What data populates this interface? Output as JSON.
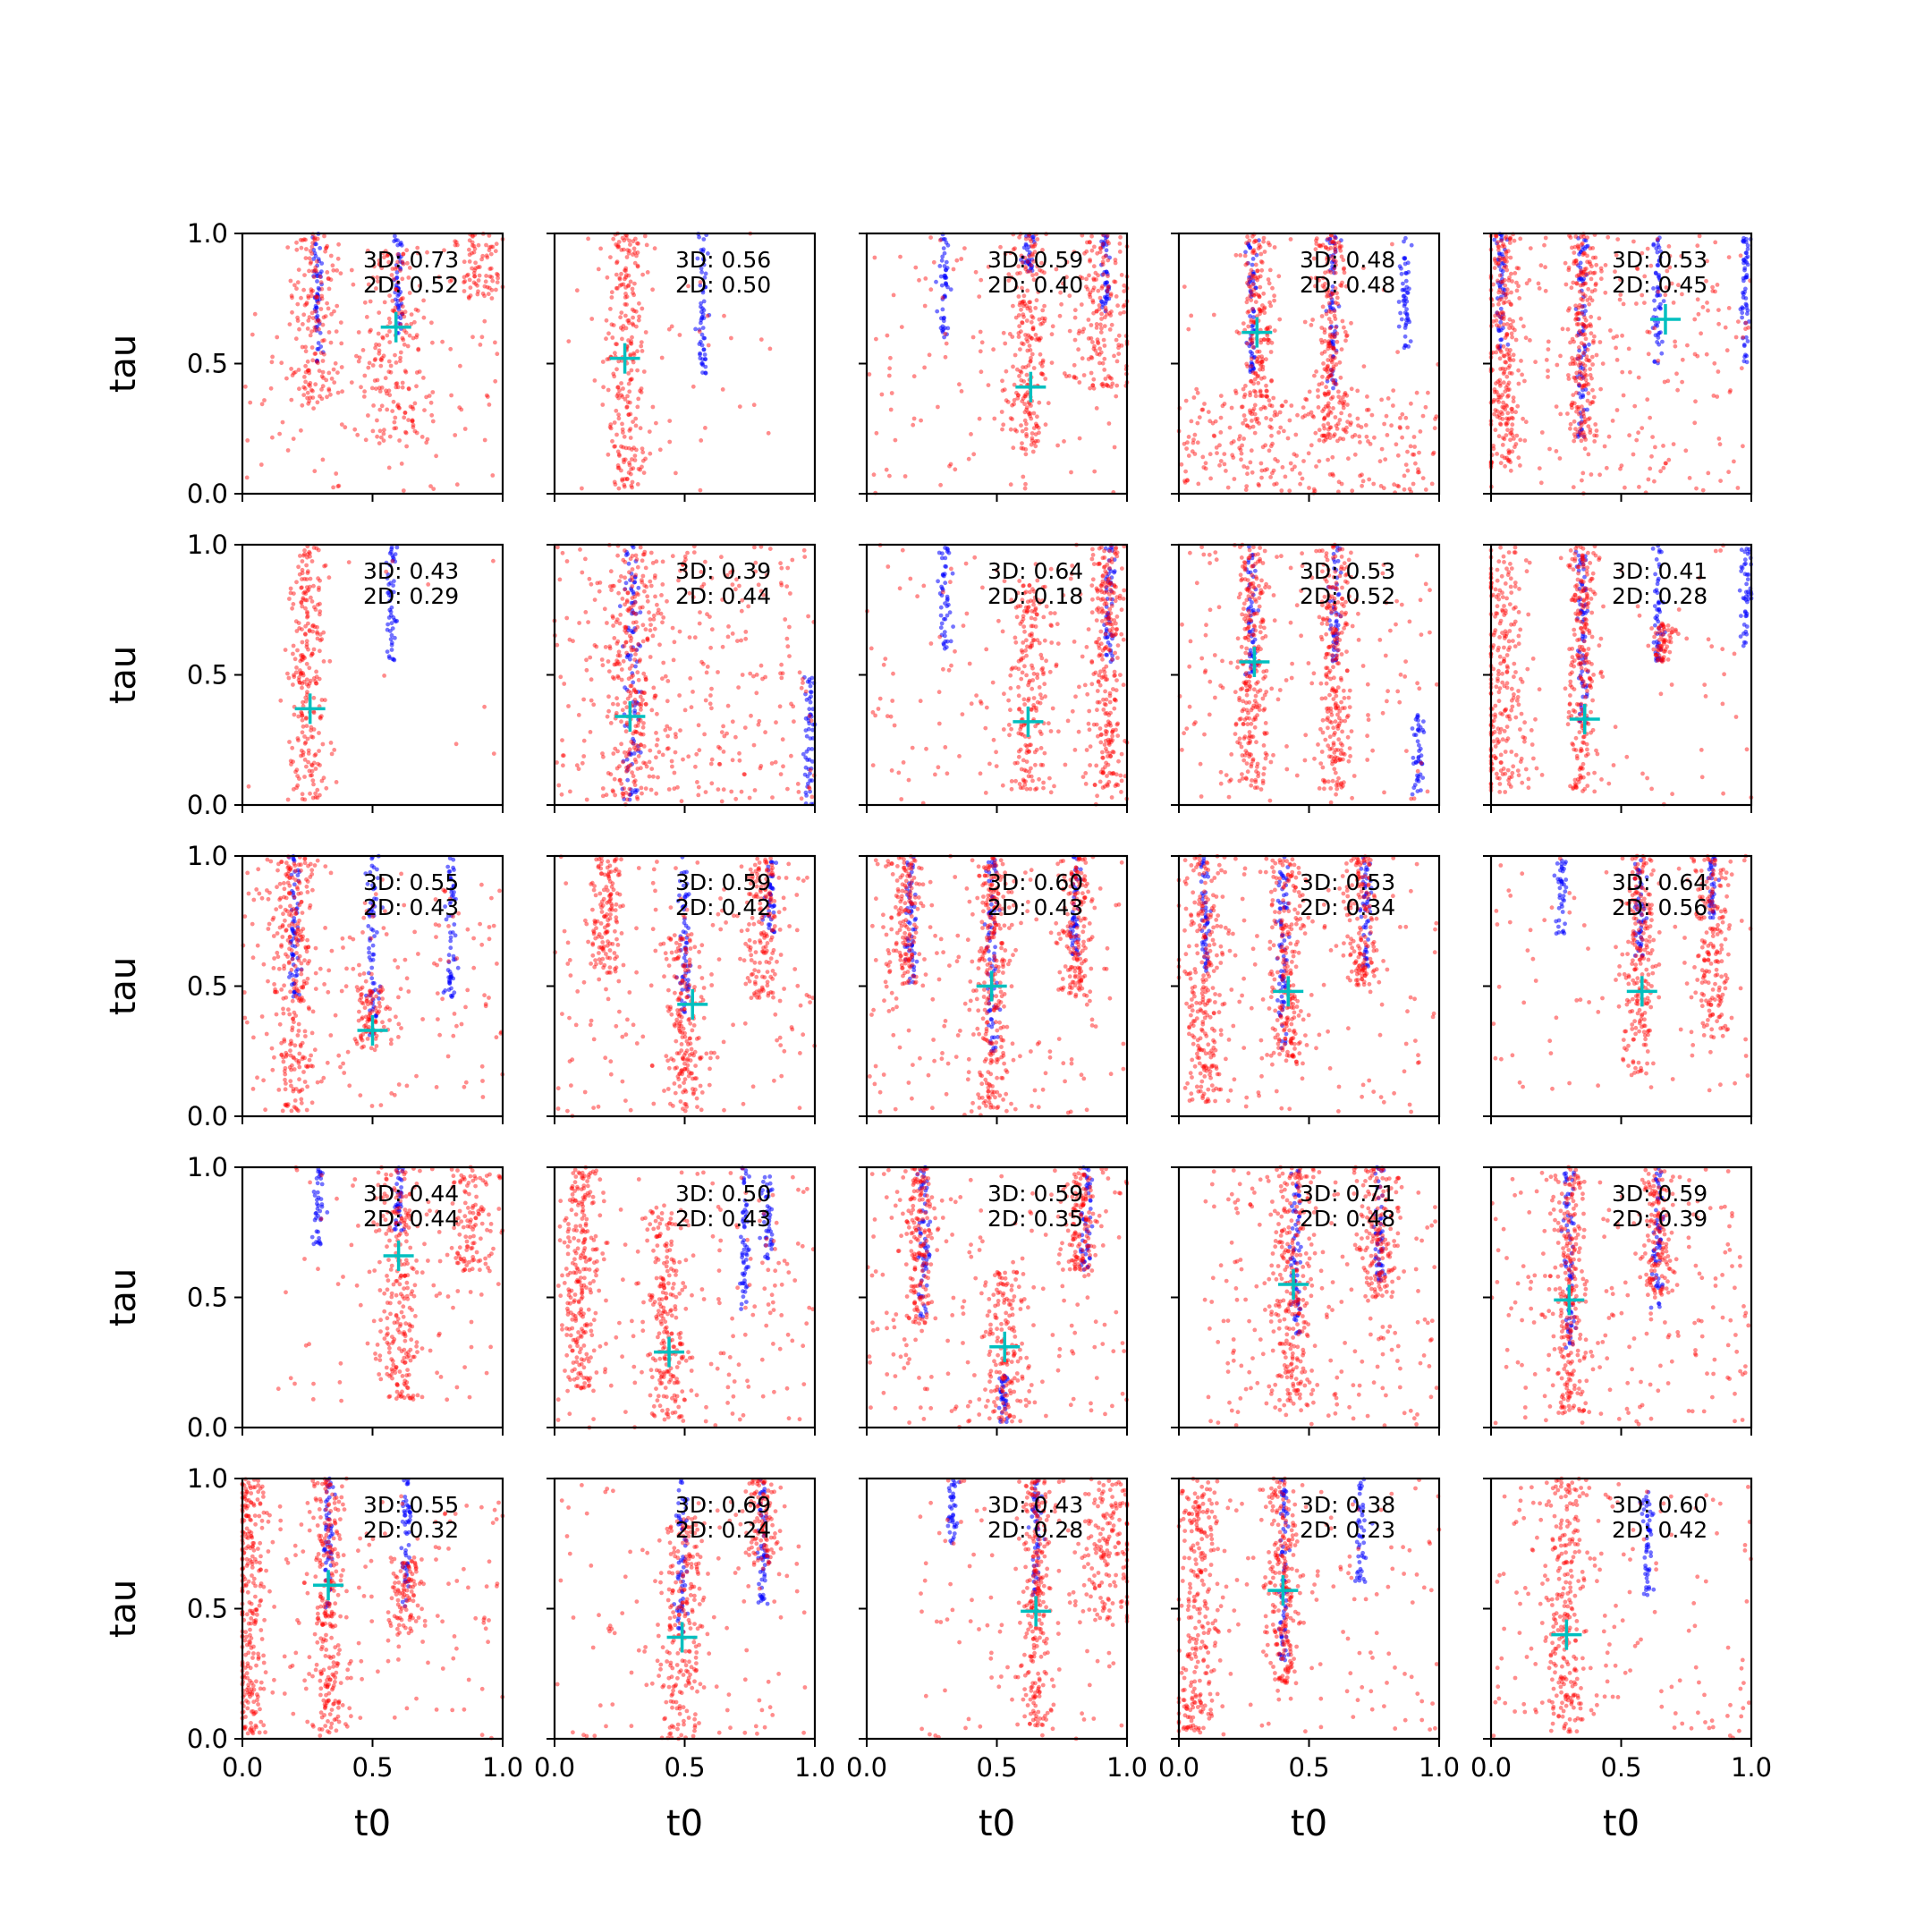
{
  "figure": {
    "xlabel": "t0",
    "ylabel": "tau",
    "xticks": [
      "0.0",
      "0.5",
      "1.0"
    ],
    "yticks": [
      "0.0",
      "0.5",
      "1.0"
    ],
    "colors": {
      "red_points": "#ff0000",
      "blue_points": "#0000ff",
      "marker": "#00bfbf"
    }
  },
  "chart_data": {
    "type": "scatter",
    "grid": {
      "rows": 5,
      "cols": 5
    },
    "xlim": [
      0,
      1
    ],
    "ylim": [
      0,
      1
    ],
    "grid_lines": false,
    "panels": [
      {
        "label_3d": "3D: 0.73",
        "label_2d": "2D: 0.52",
        "marker": [
          0.59,
          0.64
        ],
        "red_cols": [
          [
            0.59,
            0.07,
            0.2,
            0.95
          ],
          [
            0.28,
            0.05,
            0.35,
            1.0
          ],
          [
            0.9,
            0.05,
            0.75,
            1.0
          ]
        ],
        "blue_cols": [
          [
            0.29,
            0.02,
            0.5,
            1.0
          ],
          [
            0.6,
            0.02,
            0.6,
            1.0
          ]
        ],
        "scatter": [
          [
            0.5,
            0.5,
            0.0,
            0.7,
            90
          ]
        ]
      },
      {
        "label_3d": "3D: 0.56",
        "label_2d": "2D: 0.50",
        "marker": [
          0.27,
          0.52
        ],
        "red_cols": [
          [
            0.27,
            0.04,
            0.02,
            1.0
          ]
        ],
        "blue_cols": [
          [
            0.57,
            0.02,
            0.45,
            1.0
          ]
        ],
        "scatter": [
          [
            0.45,
            0.4,
            0.0,
            1.0,
            40
          ]
        ]
      },
      {
        "label_3d": "3D: 0.59",
        "label_2d": "2D: 0.40",
        "marker": [
          0.63,
          0.41
        ],
        "red_cols": [
          [
            0.62,
            0.04,
            0.15,
            1.0
          ],
          [
            0.9,
            0.06,
            0.4,
            1.0
          ]
        ],
        "blue_cols": [
          [
            0.3,
            0.02,
            0.6,
            1.0
          ],
          [
            0.62,
            0.02,
            0.85,
            1.0
          ],
          [
            0.92,
            0.02,
            0.7,
            1.0
          ]
        ],
        "scatter": [
          [
            0.5,
            0.5,
            0.0,
            1.0,
            120
          ]
        ]
      },
      {
        "label_3d": "3D: 0.48",
        "label_2d": "2D: 0.48",
        "marker": [
          0.3,
          0.62
        ],
        "red_cols": [
          [
            0.3,
            0.03,
            0.25,
            1.0
          ],
          [
            0.58,
            0.03,
            0.2,
            1.0
          ]
        ],
        "blue_cols": [
          [
            0.28,
            0.02,
            0.45,
            1.0
          ],
          [
            0.59,
            0.02,
            0.4,
            1.0
          ],
          [
            0.87,
            0.02,
            0.55,
            1.0
          ]
        ],
        "scatter": [
          [
            0.5,
            0.5,
            0.0,
            0.4,
            240
          ],
          [
            0.5,
            0.5,
            0.0,
            1.0,
            60
          ]
        ]
      },
      {
        "label_3d": "3D: 0.53",
        "label_2d": "2D: 0.45",
        "marker": [
          0.67,
          0.67
        ],
        "red_cols": [
          [
            0.35,
            0.03,
            0.2,
            1.0
          ],
          [
            0.05,
            0.03,
            0.1,
            1.0
          ]
        ],
        "blue_cols": [
          [
            0.35,
            0.02,
            0.2,
            1.0
          ],
          [
            0.64,
            0.02,
            0.5,
            1.0
          ],
          [
            0.98,
            0.02,
            0.5,
            1.0
          ],
          [
            0.04,
            0.02,
            0.55,
            1.0
          ]
        ],
        "scatter": [
          [
            0.5,
            0.5,
            0.0,
            1.0,
            240
          ]
        ]
      },
      {
        "label_3d": "3D: 0.43",
        "label_2d": "2D: 0.29",
        "marker": [
          0.26,
          0.37
        ],
        "red_cols": [
          [
            0.25,
            0.035,
            0.02,
            1.0
          ]
        ],
        "blue_cols": [
          [
            0.57,
            0.02,
            0.55,
            1.0
          ]
        ],
        "scatter": [
          [
            0.5,
            0.5,
            0.0,
            1.0,
            15
          ]
        ]
      },
      {
        "label_3d": "3D: 0.39",
        "label_2d": "2D: 0.44",
        "marker": [
          0.29,
          0.34
        ],
        "red_cols": [
          [
            0.3,
            0.05,
            0.02,
            1.0
          ]
        ],
        "blue_cols": [
          [
            0.3,
            0.04,
            0.02,
            1.0
          ],
          [
            0.98,
            0.02,
            0.0,
            0.5
          ]
        ],
        "scatter": [
          [
            0.5,
            0.5,
            0.0,
            1.0,
            320
          ]
        ]
      },
      {
        "label_3d": "3D: 0.64",
        "label_2d": "2D: 0.18",
        "marker": [
          0.62,
          0.32
        ],
        "red_cols": [
          [
            0.62,
            0.04,
            0.05,
            0.85
          ],
          [
            0.92,
            0.03,
            0.05,
            1.0
          ]
        ],
        "blue_cols": [
          [
            0.3,
            0.02,
            0.6,
            1.0
          ],
          [
            0.93,
            0.02,
            0.55,
            1.0
          ]
        ],
        "scatter": [
          [
            0.5,
            0.5,
            0.0,
            1.0,
            140
          ]
        ]
      },
      {
        "label_3d": "3D: 0.53",
        "label_2d": "2D: 0.52",
        "marker": [
          0.29,
          0.55
        ],
        "red_cols": [
          [
            0.28,
            0.03,
            0.05,
            1.0
          ],
          [
            0.6,
            0.03,
            0.05,
            1.0
          ]
        ],
        "blue_cols": [
          [
            0.28,
            0.02,
            0.5,
            1.0
          ],
          [
            0.6,
            0.02,
            0.55,
            1.0
          ],
          [
            0.92,
            0.02,
            0.02,
            0.35
          ]
        ],
        "scatter": [
          [
            0.5,
            0.5,
            0.0,
            1.0,
            150
          ]
        ]
      },
      {
        "label_3d": "3D: 0.41",
        "label_2d": "2D: 0.28",
        "marker": [
          0.36,
          0.33
        ],
        "red_cols": [
          [
            0.05,
            0.05,
            0.05,
            1.0
          ],
          [
            0.35,
            0.03,
            0.05,
            1.0
          ],
          [
            0.66,
            0.02,
            0.55,
            0.7
          ]
        ],
        "blue_cols": [
          [
            0.35,
            0.02,
            0.3,
            1.0
          ],
          [
            0.64,
            0.02,
            0.55,
            1.0
          ],
          [
            0.98,
            0.02,
            0.6,
            1.0
          ]
        ],
        "scatter": [
          [
            0.5,
            0.5,
            0.0,
            1.0,
            50
          ]
        ]
      },
      {
        "label_3d": "3D: 0.55",
        "label_2d": "2D: 0.43",
        "marker": [
          0.5,
          0.33
        ],
        "red_cols": [
          [
            0.2,
            0.04,
            0.02,
            1.0
          ],
          [
            0.5,
            0.03,
            0.25,
            0.5
          ]
        ],
        "blue_cols": [
          [
            0.2,
            0.02,
            0.4,
            1.0
          ],
          [
            0.5,
            0.02,
            0.3,
            1.0
          ],
          [
            0.8,
            0.02,
            0.45,
            1.0
          ]
        ],
        "scatter": [
          [
            0.5,
            0.5,
            0.0,
            1.0,
            200
          ]
        ]
      },
      {
        "label_3d": "3D: 0.59",
        "label_2d": "2D: 0.42",
        "marker": [
          0.53,
          0.43
        ],
        "red_cols": [
          [
            0.5,
            0.04,
            0.02,
            0.7
          ],
          [
            0.2,
            0.03,
            0.55,
            1.0
          ],
          [
            0.8,
            0.04,
            0.45,
            1.0
          ]
        ],
        "blue_cols": [
          [
            0.5,
            0.02,
            0.4,
            1.0
          ],
          [
            0.83,
            0.02,
            0.7,
            1.0
          ]
        ],
        "scatter": [
          [
            0.5,
            0.5,
            0.0,
            1.0,
            160
          ]
        ]
      },
      {
        "label_3d": "3D: 0.60",
        "label_2d": "2D: 0.43",
        "marker": [
          0.48,
          0.5
        ],
        "red_cols": [
          [
            0.48,
            0.03,
            0.02,
            1.0
          ],
          [
            0.15,
            0.03,
            0.5,
            1.0
          ],
          [
            0.8,
            0.03,
            0.45,
            1.0
          ]
        ],
        "blue_cols": [
          [
            0.17,
            0.02,
            0.5,
            1.0
          ],
          [
            0.48,
            0.02,
            0.25,
            1.0
          ],
          [
            0.8,
            0.02,
            0.6,
            1.0
          ]
        ],
        "scatter": [
          [
            0.5,
            0.5,
            0.0,
            1.0,
            190
          ]
        ]
      },
      {
        "label_3d": "3D: 0.53",
        "label_2d": "2D: 0.34",
        "marker": [
          0.42,
          0.48
        ],
        "red_cols": [
          [
            0.1,
            0.04,
            0.05,
            1.0
          ],
          [
            0.42,
            0.03,
            0.2,
            1.0
          ],
          [
            0.7,
            0.03,
            0.5,
            1.0
          ]
        ],
        "blue_cols": [
          [
            0.1,
            0.02,
            0.55,
            1.0
          ],
          [
            0.4,
            0.02,
            0.25,
            1.0
          ],
          [
            0.72,
            0.02,
            0.55,
            1.0
          ]
        ],
        "scatter": [
          [
            0.5,
            0.5,
            0.0,
            1.0,
            150
          ]
        ]
      },
      {
        "label_3d": "3D: 0.64",
        "label_2d": "2D: 0.56",
        "marker": [
          0.58,
          0.48
        ],
        "red_cols": [
          [
            0.57,
            0.03,
            0.15,
            1.0
          ],
          [
            0.85,
            0.04,
            0.3,
            1.0
          ]
        ],
        "blue_cols": [
          [
            0.27,
            0.02,
            0.7,
            1.0
          ],
          [
            0.57,
            0.02,
            0.6,
            1.0
          ],
          [
            0.85,
            0.02,
            0.75,
            1.0
          ]
        ],
        "scatter": [
          [
            0.5,
            0.5,
            0.1,
            1.0,
            80
          ]
        ]
      },
      {
        "label_3d": "3D: 0.44",
        "label_2d": "2D: 0.44",
        "marker": [
          0.6,
          0.66
        ],
        "red_cols": [
          [
            0.6,
            0.04,
            0.1,
            1.0
          ],
          [
            0.88,
            0.05,
            0.6,
            1.0
          ]
        ],
        "blue_cols": [
          [
            0.29,
            0.02,
            0.7,
            1.0
          ],
          [
            0.6,
            0.02,
            0.75,
            1.0
          ]
        ],
        "scatter": [
          [
            0.55,
            0.45,
            0.1,
            1.0,
            90
          ]
        ]
      },
      {
        "label_3d": "3D: 0.50",
        "label_2d": "2D: 0.43",
        "marker": [
          0.44,
          0.29
        ],
        "red_cols": [
          [
            0.43,
            0.04,
            0.02,
            0.85
          ],
          [
            0.1,
            0.03,
            0.15,
            1.0
          ]
        ],
        "blue_cols": [
          [
            0.73,
            0.02,
            0.45,
            1.0
          ],
          [
            0.82,
            0.02,
            0.65,
            1.0
          ]
        ],
        "scatter": [
          [
            0.5,
            0.5,
            0.0,
            1.0,
            200
          ]
        ]
      },
      {
        "label_3d": "3D: 0.59",
        "label_2d": "2D: 0.35",
        "marker": [
          0.53,
          0.31
        ],
        "red_cols": [
          [
            0.53,
            0.04,
            0.02,
            0.6
          ],
          [
            0.2,
            0.03,
            0.4,
            1.0
          ],
          [
            0.82,
            0.03,
            0.6,
            1.0
          ]
        ],
        "blue_cols": [
          [
            0.22,
            0.02,
            0.4,
            1.0
          ],
          [
            0.53,
            0.02,
            0.02,
            0.2
          ],
          [
            0.84,
            0.02,
            0.6,
            1.0
          ]
        ],
        "scatter": [
          [
            0.5,
            0.5,
            0.0,
            1.0,
            200
          ]
        ]
      },
      {
        "label_3d": "3D: 0.71",
        "label_2d": "2D: 0.48",
        "marker": [
          0.44,
          0.55
        ],
        "red_cols": [
          [
            0.44,
            0.04,
            0.05,
            1.0
          ],
          [
            0.77,
            0.04,
            0.5,
            1.0
          ]
        ],
        "blue_cols": [
          [
            0.45,
            0.02,
            0.35,
            1.0
          ],
          [
            0.77,
            0.02,
            0.55,
            1.0
          ]
        ],
        "scatter": [
          [
            0.55,
            0.45,
            0.0,
            1.0,
            230
          ]
        ]
      },
      {
        "label_3d": "3D: 0.59",
        "label_2d": "2D: 0.39",
        "marker": [
          0.3,
          0.49
        ],
        "red_cols": [
          [
            0.3,
            0.03,
            0.05,
            1.0
          ],
          [
            0.64,
            0.03,
            0.5,
            1.0
          ]
        ],
        "blue_cols": [
          [
            0.3,
            0.02,
            0.3,
            1.0
          ],
          [
            0.64,
            0.02,
            0.45,
            1.0
          ]
        ],
        "scatter": [
          [
            0.5,
            0.5,
            0.0,
            1.0,
            200
          ]
        ]
      },
      {
        "label_3d": "3D: 0.55",
        "label_2d": "2D: 0.32",
        "marker": [
          0.33,
          0.59
        ],
        "red_cols": [
          [
            0.33,
            0.03,
            0.02,
            1.0
          ],
          [
            0.03,
            0.03,
            0.02,
            1.0
          ],
          [
            0.63,
            0.03,
            0.4,
            0.7
          ]
        ],
        "blue_cols": [
          [
            0.33,
            0.02,
            0.5,
            1.0
          ],
          [
            0.63,
            0.02,
            0.5,
            1.0
          ]
        ],
        "scatter": [
          [
            0.5,
            0.5,
            0.0,
            1.0,
            150
          ]
        ]
      },
      {
        "label_3d": "3D: 0.69",
        "label_2d": "2D: 0.24",
        "marker": [
          0.49,
          0.39
        ],
        "red_cols": [
          [
            0.49,
            0.04,
            0.0,
            0.85
          ],
          [
            0.8,
            0.03,
            0.65,
            1.0
          ]
        ],
        "blue_cols": [
          [
            0.49,
            0.02,
            0.4,
            1.0
          ],
          [
            0.8,
            0.02,
            0.5,
            1.0
          ]
        ],
        "scatter": [
          [
            0.5,
            0.5,
            0.0,
            1.0,
            110
          ]
        ]
      },
      {
        "label_3d": "3D: 0.43",
        "label_2d": "2D: 0.28",
        "marker": [
          0.65,
          0.49
        ],
        "red_cols": [
          [
            0.65,
            0.03,
            0.05,
            1.0
          ],
          [
            0.92,
            0.06,
            0.45,
            1.0
          ]
        ],
        "blue_cols": [
          [
            0.33,
            0.02,
            0.75,
            1.0
          ],
          [
            0.65,
            0.02,
            0.55,
            1.0
          ]
        ],
        "scatter": [
          [
            0.6,
            0.4,
            0.0,
            1.0,
            110
          ]
        ]
      },
      {
        "label_3d": "3D: 0.38",
        "label_2d": "2D: 0.23",
        "marker": [
          0.4,
          0.57
        ],
        "red_cols": [
          [
            0.07,
            0.04,
            0.02,
            1.0
          ],
          [
            0.4,
            0.03,
            0.2,
            1.0
          ]
        ],
        "blue_cols": [
          [
            0.4,
            0.02,
            0.3,
            1.0
          ],
          [
            0.7,
            0.02,
            0.6,
            1.0
          ]
        ],
        "scatter": [
          [
            0.5,
            0.5,
            0.0,
            1.0,
            150
          ]
        ]
      },
      {
        "label_3d": "3D: 0.60",
        "label_2d": "2D: 0.42",
        "marker": [
          0.29,
          0.4
        ],
        "red_cols": [
          [
            0.29,
            0.04,
            0.02,
            1.0
          ]
        ],
        "blue_cols": [
          [
            0.6,
            0.02,
            0.55,
            1.0
          ]
        ],
        "scatter": [
          [
            0.5,
            0.5,
            0.0,
            1.0,
            150
          ]
        ]
      }
    ]
  }
}
